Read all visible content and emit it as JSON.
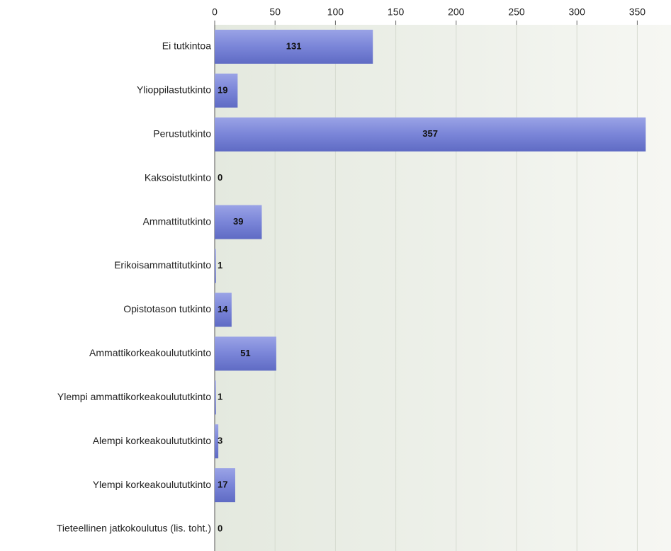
{
  "chart_data": {
    "type": "bar",
    "orientation": "horizontal",
    "categories": [
      "Ei tutkintoa",
      "Ylioppilastutkinto",
      "Perustutkinto",
      "Kaksoistutkinto",
      "Ammattitutkinto",
      "Erikoisammattitutkinto",
      "Opistotason tutkinto",
      "Ammattikorkeakoulututkinto",
      "Ylempi ammattikorkeakoulututkinto",
      "Alempi korkeakoulututkinto",
      "Ylempi korkeakoulututkinto",
      "Tieteellinen jatkokoulutus (lis. toht.)"
    ],
    "values": [
      131,
      19,
      357,
      0,
      39,
      1,
      14,
      51,
      1,
      3,
      17,
      0
    ],
    "color": "#7a85d8",
    "xlim": [
      0,
      375
    ],
    "xticks": [
      0,
      50,
      100,
      150,
      200,
      250,
      300,
      350
    ],
    "grid": true
  }
}
